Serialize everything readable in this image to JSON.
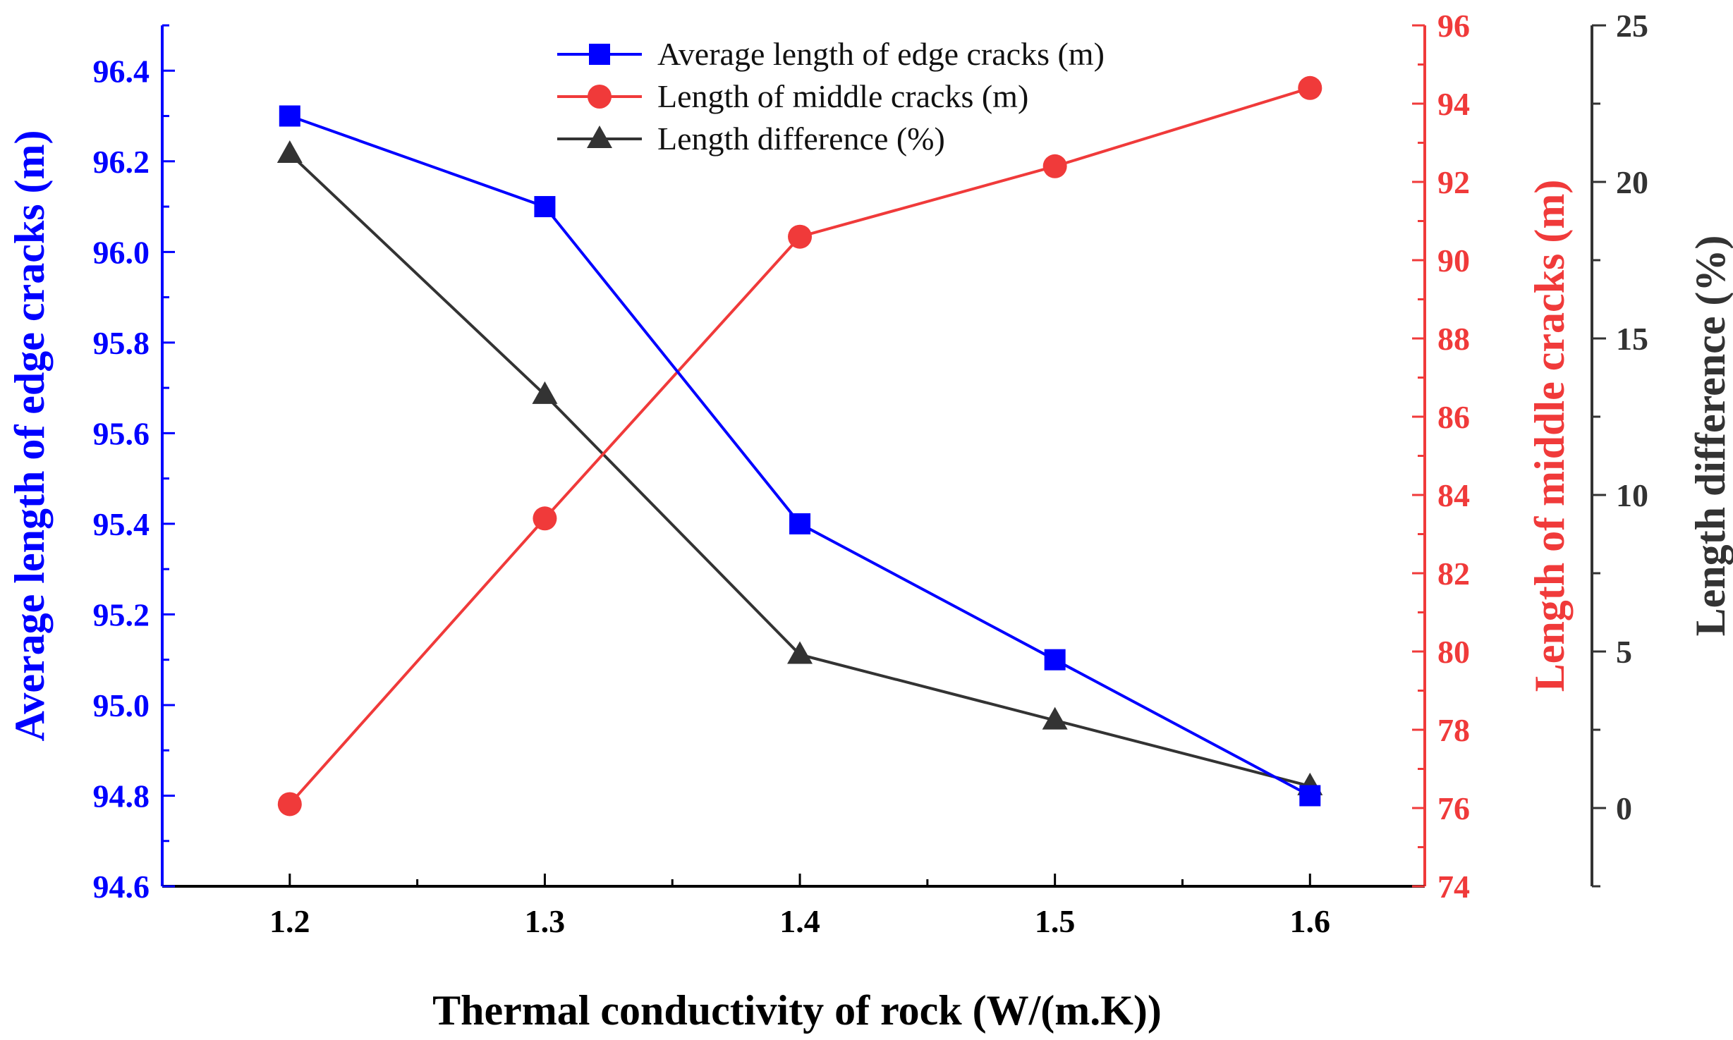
{
  "chart_data": {
    "type": "line",
    "title": "",
    "x": [
      1.2,
      1.3,
      1.4,
      1.5,
      1.6
    ],
    "xticks": [
      "1.2",
      "1.3",
      "1.4",
      "1.5",
      "1.6"
    ],
    "xlim": [
      1.15,
      1.645
    ],
    "xlabel": "Thermal conductivity of rock (W/(m.K))",
    "legend_position": "top-center",
    "axes": {
      "left": {
        "label": "Average length of edge cracks (m)",
        "color": "#0000ff",
        "ylim": [
          94.6,
          96.5
        ],
        "ticks": [
          "94.6",
          "94.8",
          "95.0",
          "95.2",
          "95.4",
          "95.6",
          "95.8",
          "96.0",
          "96.2",
          "96.4"
        ]
      },
      "right": {
        "label": "Length of middle cracks (m)",
        "color": "#f03a3a",
        "ylim": [
          74,
          96
        ],
        "ticks": [
          "74",
          "76",
          "78",
          "80",
          "82",
          "84",
          "86",
          "88",
          "90",
          "92",
          "94",
          "96"
        ]
      },
      "right2": {
        "label": "Length difference (%)",
        "color": "#333333",
        "ylim": [
          -2.5,
          25
        ],
        "ticks": [
          "0",
          "5",
          "10",
          "15",
          "20",
          "25"
        ]
      }
    },
    "series": [
      {
        "name": "Average length of edge cracks (m)",
        "axis": "left",
        "marker": "square",
        "color": "#0000ff",
        "values": [
          96.3,
          96.1,
          95.4,
          95.1,
          94.8
        ]
      },
      {
        "name": "Length of middle cracks (m)",
        "axis": "right",
        "marker": "circle",
        "color": "#f03a3a",
        "values": [
          76.1,
          83.4,
          90.6,
          92.4,
          94.4
        ]
      },
      {
        "name": "Length difference (%)",
        "axis": "right2",
        "marker": "triangle",
        "color": "#333333",
        "values": [
          20.9,
          13.2,
          4.9,
          2.8,
          0.7
        ]
      }
    ]
  }
}
